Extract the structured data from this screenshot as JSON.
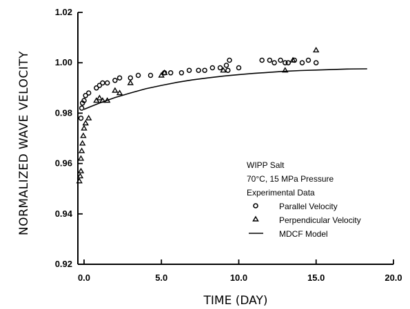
{
  "chart_data": {
    "type": "scatter",
    "xlabel": "TIME (DAY)",
    "ylabel": "NORMALIZED WAVE VELOCITY",
    "xlim": [
      -0.4,
      20
    ],
    "ylim": [
      0.92,
      1.02
    ],
    "xticks": [
      0,
      5,
      10,
      15,
      20
    ],
    "xtick_labels": [
      "0.0",
      "5.0",
      "10.0",
      "15.0",
      "20.0"
    ],
    "yticks": [
      0.92,
      0.94,
      0.96,
      0.98,
      1.0,
      1.02
    ],
    "ytick_labels": [
      "0.92",
      "0.94",
      "0.96",
      "0.98",
      "1.00",
      "1.02"
    ],
    "annotations": [
      "WIPP Salt",
      "70°C, 15 MPa Pressure",
      "Experimental Data"
    ],
    "legend_position": "lower-right",
    "series": [
      {
        "name": "Parallel Velocity",
        "marker": "circle",
        "x": [
          -0.2,
          -0.15,
          -0.1,
          0.0,
          0.1,
          0.3,
          0.8,
          1.0,
          1.2,
          1.5,
          2.0,
          2.3,
          3.0,
          3.5,
          4.3,
          5.2,
          5.6,
          6.3,
          6.8,
          7.4,
          7.8,
          8.3,
          8.8,
          9.2,
          9.4,
          9.3,
          10.0,
          11.5,
          12.0,
          12.3,
          12.7,
          13.0,
          13.2,
          13.6,
          14.1,
          14.5,
          15.0
        ],
        "y": [
          0.978,
          0.982,
          0.984,
          0.985,
          0.987,
          0.988,
          0.99,
          0.991,
          0.992,
          0.992,
          0.993,
          0.994,
          0.994,
          0.995,
          0.995,
          0.996,
          0.996,
          0.996,
          0.997,
          0.997,
          0.997,
          0.998,
          0.998,
          0.999,
          1.001,
          0.997,
          0.998,
          1.001,
          1.001,
          1.0,
          1.001,
          1.0,
          1.0,
          1.001,
          1.0,
          1.001,
          1.0
        ]
      },
      {
        "name": "Perpendicular Velocity",
        "marker": "triangle",
        "x": [
          -0.3,
          -0.25,
          -0.2,
          -0.2,
          -0.15,
          -0.1,
          -0.05,
          0.0,
          0.1,
          0.3,
          0.8,
          1.0,
          1.2,
          1.5,
          2.0,
          2.3,
          3.0,
          5.0,
          5.2,
          9.0,
          13.0,
          13.5,
          15.0
        ],
        "y": [
          0.953,
          0.955,
          0.957,
          0.962,
          0.965,
          0.968,
          0.971,
          0.974,
          0.976,
          0.978,
          0.985,
          0.986,
          0.985,
          0.985,
          0.989,
          0.988,
          0.992,
          0.995,
          0.996,
          0.997,
          0.997,
          1.001,
          1.005
        ]
      },
      {
        "name": "MDCF Model",
        "marker": "line",
        "x": [
          0,
          0.5,
          1,
          2,
          3,
          4,
          5,
          6,
          7,
          8,
          9,
          10,
          11,
          12,
          13,
          14,
          15,
          16,
          17,
          18.3
        ],
        "y": [
          0.9815,
          0.9828,
          0.984,
          0.9862,
          0.988,
          0.9897,
          0.991,
          0.9922,
          0.9932,
          0.994,
          0.9947,
          0.9953,
          0.9958,
          0.9962,
          0.9966,
          0.9969,
          0.9971,
          0.9973,
          0.9975,
          0.9976
        ]
      }
    ]
  }
}
